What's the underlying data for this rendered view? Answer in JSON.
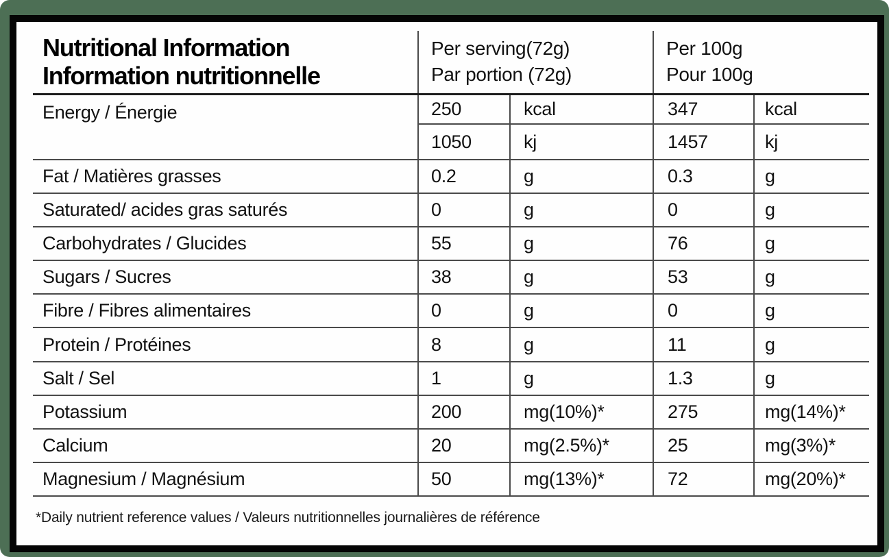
{
  "title": {
    "line1": "Nutritional Information",
    "line2": "Information nutritionnelle"
  },
  "column_headers": {
    "per_serving": {
      "line1": "Per serving(72g)",
      "line2": "Par portion (72g)"
    },
    "per_100g": {
      "line1": "Per 100g",
      "line2": "Pour 100g"
    }
  },
  "energy": {
    "label": "Energy / Énergie",
    "sub_rows": [
      {
        "serving_value": "250",
        "serving_unit": "kcal",
        "per100_value": "347",
        "per100_unit": "kcal"
      },
      {
        "serving_value": "1050",
        "serving_unit": "kj",
        "per100_value": "1457",
        "per100_unit": "kj"
      }
    ]
  },
  "rows": [
    {
      "label": "Fat / Matières grasses",
      "serving_value": "0.2",
      "serving_unit": "g",
      "per100_value": "0.3",
      "per100_unit": "g"
    },
    {
      "label": "Saturated/ acides gras saturés",
      "serving_value": "0",
      "serving_unit": "g",
      "per100_value": "0",
      "per100_unit": "g"
    },
    {
      "label": "Carbohydrates / Glucides",
      "serving_value": "55",
      "serving_unit": "g",
      "per100_value": "76",
      "per100_unit": "g"
    },
    {
      "label": "Sugars / Sucres",
      "serving_value": "38",
      "serving_unit": "g",
      "per100_value": "53",
      "per100_unit": "g"
    },
    {
      "label": "Fibre / Fibres alimentaires",
      "serving_value": "0",
      "serving_unit": "g",
      "per100_value": "0",
      "per100_unit": "g"
    },
    {
      "label": "Protein / Protéines",
      "serving_value": "8",
      "serving_unit": "g",
      "per100_value": "11",
      "per100_unit": "g"
    },
    {
      "label": "Salt / Sel",
      "serving_value": "1",
      "serving_unit": "g",
      "per100_value": "1.3",
      "per100_unit": "g"
    },
    {
      "label": "Potassium",
      "serving_value": "200",
      "serving_unit": "mg(10%)*",
      "per100_value": "275",
      "per100_unit": "mg(14%)*"
    },
    {
      "label": "Calcium",
      "serving_value": "20",
      "serving_unit": "mg(2.5%)*",
      "per100_value": "25",
      "per100_unit": "mg(3%)*"
    },
    {
      "label": "Magnesium / Magnésium",
      "serving_value": "50",
      "serving_unit": "mg(13%)*",
      "per100_value": "72",
      "per100_unit": "mg(20%)*"
    }
  ],
  "footnote": "*Daily nutrient reference values / Valeurs nutritionnelles journalières de référence",
  "colors": {
    "page_background": "#4d6f55",
    "card_background": "#fefefe",
    "card_border": "#050505",
    "grid_line": "#4a4a4a",
    "header_underline": "#1d1d1d",
    "text": "#121212"
  }
}
